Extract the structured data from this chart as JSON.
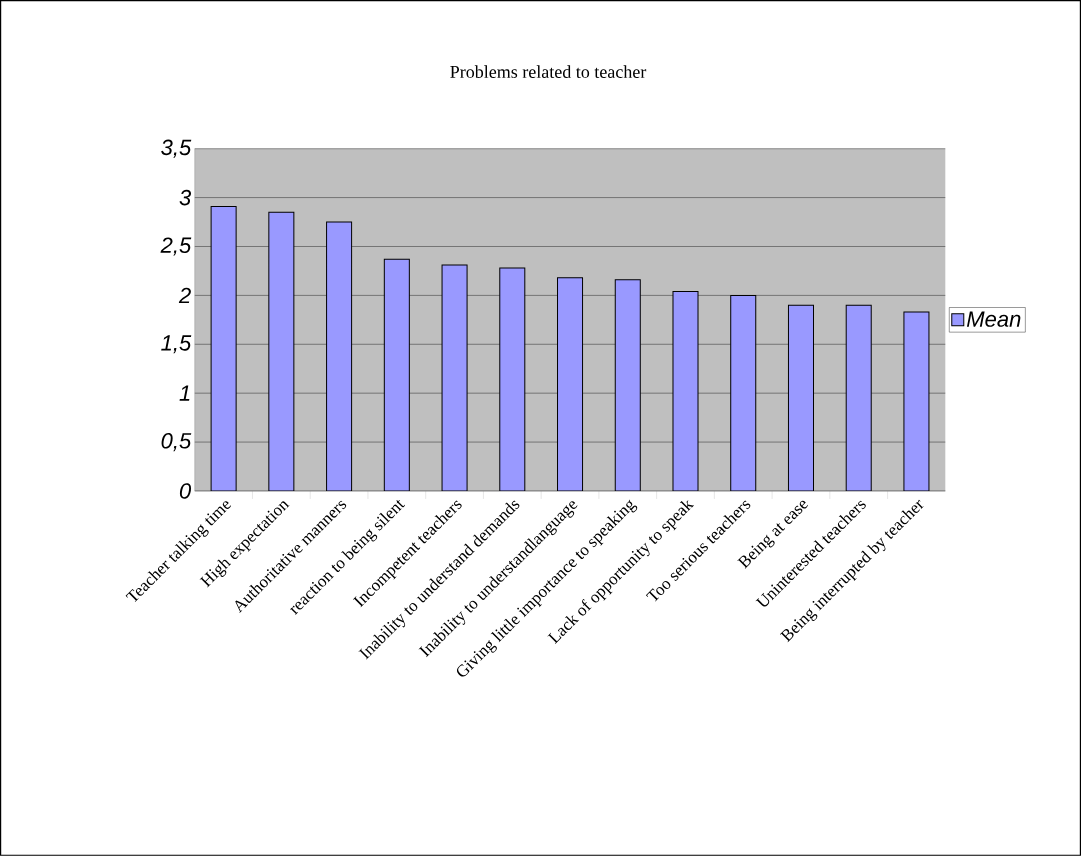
{
  "chart_data": {
    "type": "bar",
    "title": "Problems related to teacher",
    "categories": [
      "Teacher talking time",
      "High expectation",
      "Authoritative manners",
      "reaction to being silent",
      "Incompetent teachers",
      "Inability to understand demands",
      "Inability to understandlanguage",
      "Giving little importance to speaking",
      "Lack of opportunity to speak",
      "Too serious teachers",
      "Being at ease",
      "Uninterested teachers",
      "Being interrupted by teacher"
    ],
    "series": [
      {
        "name": "Mean",
        "color": "#9999ff",
        "values": [
          2.91,
          2.85,
          2.75,
          2.37,
          2.31,
          2.28,
          2.18,
          2.16,
          2.04,
          2.0,
          1.9,
          1.9,
          1.83
        ]
      }
    ],
    "ylim": [
      0,
      3.5
    ],
    "yticks": [
      0,
      {
        "value": 0.5,
        "label": "0,5"
      },
      1,
      {
        "value": 1.5,
        "label": "1,5"
      },
      2,
      {
        "value": 2.5,
        "label": "2,5"
      },
      3,
      {
        "value": 3.5,
        "label": "3,5"
      }
    ],
    "grid": "y",
    "legend": "right"
  }
}
